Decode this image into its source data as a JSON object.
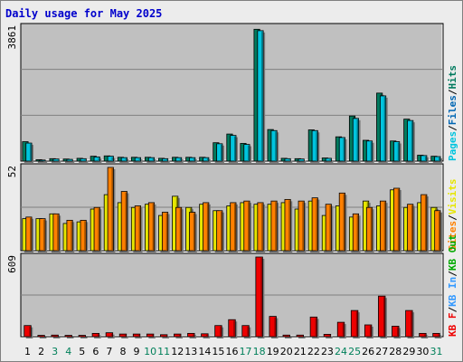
{
  "title": "Daily usage for May 2025",
  "colors": {
    "pages": "#00c4de",
    "files": "#0066b3",
    "hits": "#007a5e",
    "visits": "#e6e600",
    "sites": "#ff8000",
    "kb_f": "#ee0000",
    "kb_in": "#3399ff",
    "kb_out": "#00aa00",
    "panel_bg": "#c0c0c0",
    "outer_bg": "#ececec",
    "weekend_label": "#00805a",
    "weekday_label": "#000000"
  },
  "legend": {
    "hits_panel": [
      {
        "text": "Pages",
        "color_key": "pages"
      },
      {
        "text": "/",
        "color_key": "sep"
      },
      {
        "text": "Files",
        "color_key": "files"
      },
      {
        "text": "/",
        "color_key": "sep"
      },
      {
        "text": "Hits",
        "color_key": "hits"
      }
    ],
    "visits_panel": [
      {
        "text": "Sites",
        "color_key": "sites"
      },
      {
        "text": "/",
        "color_key": "sep"
      },
      {
        "text": "Visits",
        "color_key": "visits"
      }
    ],
    "kb_panel": [
      {
        "text": "KB F",
        "color_key": "kb_f"
      },
      {
        "text": "/",
        "color_key": "sep"
      },
      {
        "text": "KB In",
        "color_key": "kb_in"
      },
      {
        "text": "/",
        "color_key": "sep"
      },
      {
        "text": "KB Out",
        "color_key": "kb_out"
      }
    ]
  },
  "chart_data": [
    {
      "type": "bar",
      "panel": "hits",
      "max_label": "3861",
      "ylim": [
        0,
        3861
      ],
      "categories": [
        "1",
        "2",
        "3",
        "4",
        "5",
        "6",
        "7",
        "8",
        "9",
        "10",
        "11",
        "12",
        "13",
        "14",
        "15",
        "16",
        "17",
        "18",
        "19",
        "20",
        "21",
        "22",
        "23",
        "24",
        "25",
        "26",
        "27",
        "28",
        "29",
        "30",
        "31"
      ],
      "series": [
        {
          "name": "Hits",
          "color_key": "hits",
          "values": [
            560,
            40,
            70,
            60,
            80,
            140,
            150,
            110,
            110,
            110,
            80,
            110,
            110,
            110,
            530,
            780,
            510,
            3800,
            910,
            80,
            70,
            900,
            90,
            700,
            1300,
            600,
            1960,
            580,
            1210,
            170,
            140
          ]
        },
        {
          "name": "Pages",
          "color_key": "pages",
          "values": [
            520,
            30,
            60,
            50,
            70,
            120,
            140,
            100,
            100,
            100,
            70,
            100,
            100,
            100,
            500,
            740,
            480,
            3760,
            880,
            70,
            60,
            880,
            80,
            680,
            1230,
            580,
            1880,
            560,
            1170,
            160,
            130
          ]
        }
      ]
    },
    {
      "type": "bar",
      "panel": "visits",
      "max_label": "52",
      "ylim": [
        0,
        52
      ],
      "categories": [
        "1",
        "2",
        "3",
        "4",
        "5",
        "6",
        "7",
        "8",
        "9",
        "10",
        "11",
        "12",
        "13",
        "14",
        "15",
        "16",
        "17",
        "18",
        "19",
        "20",
        "21",
        "22",
        "23",
        "24",
        "25",
        "26",
        "27",
        "28",
        "29",
        "30",
        "31"
      ],
      "series": [
        {
          "name": "Visits",
          "color_key": "visits",
          "values": [
            20,
            20,
            23,
            17,
            18,
            26,
            35,
            30,
            27,
            29,
            22,
            34,
            27,
            29,
            25,
            28,
            30,
            29,
            29,
            30,
            26,
            31,
            22,
            28,
            21,
            31,
            28,
            38,
            27,
            30,
            27
          ]
        },
        {
          "name": "Sites",
          "color_key": "sites",
          "values": [
            21,
            20,
            23,
            19,
            19,
            27,
            52,
            37,
            28,
            30,
            24,
            27,
            24,
            30,
            25,
            30,
            31,
            30,
            31,
            32,
            31,
            33,
            29,
            36,
            23,
            27,
            31,
            39,
            29,
            35,
            25
          ]
        }
      ]
    },
    {
      "type": "bar",
      "panel": "kb",
      "max_label": "609",
      "ylim": [
        0,
        609
      ],
      "categories": [
        "1",
        "2",
        "3",
        "4",
        "5",
        "6",
        "7",
        "8",
        "9",
        "10",
        "11",
        "12",
        "13",
        "14",
        "15",
        "16",
        "17",
        "18",
        "19",
        "20",
        "21",
        "22",
        "23",
        "24",
        "25",
        "26",
        "27",
        "28",
        "29",
        "30",
        "31"
      ],
      "series": [
        {
          "name": "KB F",
          "color_key": "kb_f",
          "values": [
            85,
            10,
            12,
            10,
            10,
            25,
            30,
            20,
            20,
            20,
            15,
            20,
            25,
            22,
            85,
            130,
            85,
            609,
            155,
            12,
            12,
            150,
            18,
            110,
            200,
            90,
            310,
            80,
            200,
            25,
            25
          ]
        }
      ]
    }
  ],
  "x_labels": [
    {
      "day": "1",
      "weekend": false
    },
    {
      "day": "2",
      "weekend": false
    },
    {
      "day": "3",
      "weekend": true
    },
    {
      "day": "4",
      "weekend": true
    },
    {
      "day": "5",
      "weekend": false
    },
    {
      "day": "6",
      "weekend": false
    },
    {
      "day": "7",
      "weekend": false
    },
    {
      "day": "8",
      "weekend": false
    },
    {
      "day": "9",
      "weekend": false
    },
    {
      "day": "10",
      "weekend": true
    },
    {
      "day": "11",
      "weekend": true
    },
    {
      "day": "12",
      "weekend": false
    },
    {
      "day": "13",
      "weekend": false
    },
    {
      "day": "14",
      "weekend": false
    },
    {
      "day": "15",
      "weekend": false
    },
    {
      "day": "16",
      "weekend": false
    },
    {
      "day": "17",
      "weekend": true
    },
    {
      "day": "18",
      "weekend": true
    },
    {
      "day": "19",
      "weekend": false
    },
    {
      "day": "20",
      "weekend": false
    },
    {
      "day": "21",
      "weekend": false
    },
    {
      "day": "22",
      "weekend": false
    },
    {
      "day": "23",
      "weekend": false
    },
    {
      "day": "24",
      "weekend": true
    },
    {
      "day": "25",
      "weekend": true
    },
    {
      "day": "26",
      "weekend": false
    },
    {
      "day": "27",
      "weekend": false
    },
    {
      "day": "28",
      "weekend": false
    },
    {
      "day": "29",
      "weekend": false
    },
    {
      "day": "30",
      "weekend": false
    },
    {
      "day": "31",
      "weekend": true
    }
  ]
}
